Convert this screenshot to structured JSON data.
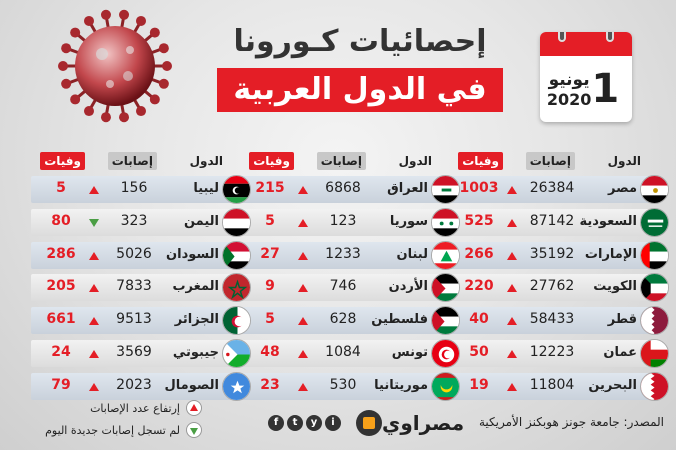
{
  "title": {
    "line1": "إحصائيات كـورونا",
    "line2": "في الدول العربية"
  },
  "date": {
    "day": "1",
    "month": "يونيو",
    "year": "2020"
  },
  "headers": {
    "country": "الدول",
    "infections": "إصابات",
    "deaths": "وفيات"
  },
  "colors": {
    "accent": "#e41e26",
    "up": "#e41e26",
    "down": "#4a9e44"
  },
  "columns": [
    {
      "rows": [
        {
          "country": "مصر",
          "infections": "26384",
          "deaths": "1003",
          "trend": "up",
          "flag": "egypt"
        },
        {
          "country": "السعودية",
          "infections": "87142",
          "deaths": "525",
          "trend": "up",
          "flag": "saudi"
        },
        {
          "country": "الإمارات",
          "infections": "35192",
          "deaths": "266",
          "trend": "up",
          "flag": "uae"
        },
        {
          "country": "الكويت",
          "infections": "27762",
          "deaths": "220",
          "trend": "up",
          "flag": "kuwait"
        },
        {
          "country": "قطر",
          "infections": "58433",
          "deaths": "40",
          "trend": "up",
          "flag": "qatar"
        },
        {
          "country": "عمان",
          "infections": "12223",
          "deaths": "50",
          "trend": "up",
          "flag": "oman"
        },
        {
          "country": "البحرين",
          "infections": "11804",
          "deaths": "19",
          "trend": "up",
          "flag": "bahrain"
        }
      ]
    },
    {
      "rows": [
        {
          "country": "العراق",
          "infections": "6868",
          "deaths": "215",
          "trend": "up",
          "flag": "iraq"
        },
        {
          "country": "سوريا",
          "infections": "123",
          "deaths": "5",
          "trend": "up",
          "flag": "syria"
        },
        {
          "country": "لبنان",
          "infections": "1233",
          "deaths": "27",
          "trend": "up",
          "flag": "lebanon"
        },
        {
          "country": "الأردن",
          "infections": "746",
          "deaths": "9",
          "trend": "up",
          "flag": "jordan"
        },
        {
          "country": "فلسطين",
          "infections": "628",
          "deaths": "5",
          "trend": "up",
          "flag": "palestine"
        },
        {
          "country": "تونس",
          "infections": "1084",
          "deaths": "48",
          "trend": "up",
          "flag": "tunisia"
        },
        {
          "country": "موريتانيا",
          "infections": "530",
          "deaths": "23",
          "trend": "up",
          "flag": "mauritania"
        }
      ]
    },
    {
      "rows": [
        {
          "country": "ليبيا",
          "infections": "156",
          "deaths": "5",
          "trend": "up",
          "flag": "libya"
        },
        {
          "country": "اليمن",
          "infections": "323",
          "deaths": "80",
          "trend": "down",
          "flag": "yemen"
        },
        {
          "country": "السودان",
          "infections": "5026",
          "deaths": "286",
          "trend": "up",
          "flag": "sudan"
        },
        {
          "country": "المغرب",
          "infections": "7833",
          "deaths": "205",
          "trend": "up",
          "flag": "morocco"
        },
        {
          "country": "الجزائر",
          "infections": "9513",
          "deaths": "661",
          "trend": "up",
          "flag": "algeria"
        },
        {
          "country": "جيبوتي",
          "infections": "3569",
          "deaths": "24",
          "trend": "up",
          "flag": "djibouti"
        },
        {
          "country": "الصومال",
          "infections": "2023",
          "deaths": "79",
          "trend": "up",
          "flag": "somalia"
        }
      ]
    }
  ],
  "legend": {
    "up": "إرتفاع عدد الإصابات",
    "down": "لم تسجل إصابات جديدة اليوم"
  },
  "brand": {
    "name": "مصراوي",
    "social": [
      "f",
      "t",
      "y",
      "i"
    ]
  },
  "source": "المصدر: جامعة جونز هوبكنز الأمريكية"
}
